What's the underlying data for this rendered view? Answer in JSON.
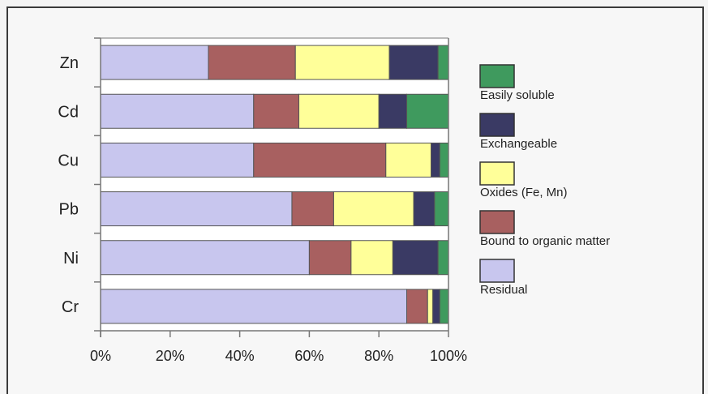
{
  "chart_data": {
    "type": "bar",
    "orientation": "horizontal",
    "stacked": true,
    "normalized_percent": true,
    "categories": [
      "Zn",
      "Cd",
      "Cu",
      "Pb",
      "Ni",
      "Cr"
    ],
    "x_ticks": [
      "0%",
      "20%",
      "40%",
      "60%",
      "80%",
      "100%"
    ],
    "xlim": [
      0,
      100
    ],
    "grid": false,
    "legend_position": "right",
    "series": [
      {
        "name": "Residual",
        "color": "#c8c6ee",
        "values": [
          31,
          44,
          44,
          55,
          60,
          88
        ]
      },
      {
        "name": "Bound to organic matter",
        "color": "#a86060",
        "values": [
          25,
          13,
          38,
          12,
          12,
          6
        ]
      },
      {
        "name": "Oxides (Fe, Mn)",
        "color": "#ffff99",
        "values": [
          27,
          23,
          13,
          23,
          12,
          1.5
        ]
      },
      {
        "name": "Exchangeable",
        "color": "#3a3a64",
        "values": [
          14,
          8,
          2.5,
          6,
          13,
          2
        ]
      },
      {
        "name": "Easily soluble",
        "color": "#3f9a5e",
        "values": [
          3,
          12,
          2.5,
          4,
          3,
          2.5
        ]
      }
    ],
    "legend_order": [
      "Easily soluble",
      "Exchangeable",
      "Oxides (Fe, Mn)",
      "Bound to organic matter",
      "Residual"
    ]
  }
}
